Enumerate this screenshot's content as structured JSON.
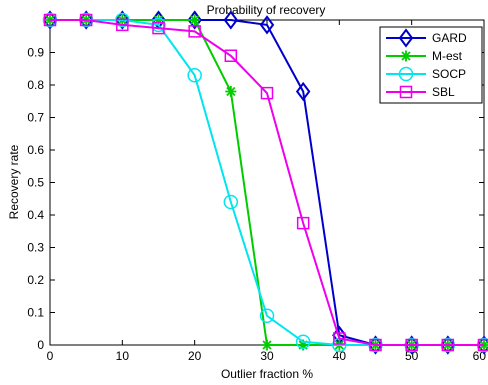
{
  "chart_data": {
    "type": "line",
    "title": "Probability of recovery",
    "xlabel": "Outlier fraction %",
    "ylabel": "Recovery rate",
    "xlim": [
      0,
      60
    ],
    "ylim": [
      0,
      1
    ],
    "x_ticks": [
      0,
      10,
      20,
      30,
      40,
      50,
      60
    ],
    "y_ticks": [
      0,
      0.1,
      0.2,
      0.3,
      0.4,
      0.5,
      0.6,
      0.7,
      0.8,
      0.9
    ],
    "grid": false,
    "legend_position": "top-right",
    "x": [
      0,
      5,
      10,
      15,
      20,
      25,
      30,
      35,
      40,
      45,
      50,
      55,
      60
    ],
    "series": [
      {
        "name": "GARD",
        "color": "#0000cc",
        "marker": "diamond",
        "values": [
          1.0,
          1.0,
          1.0,
          1.0,
          1.0,
          1.0,
          0.985,
          0.78,
          0.03,
          0.0,
          0.0,
          0.0,
          0.0
        ]
      },
      {
        "name": "M-est",
        "color": "#00cc00",
        "marker": "star",
        "values": [
          1.0,
          1.0,
          1.0,
          1.0,
          1.0,
          0.78,
          0.0,
          0.0,
          0.0,
          0.0,
          0.0,
          0.0,
          0.0
        ]
      },
      {
        "name": "SOCP",
        "color": "#00e5ee",
        "marker": "circle",
        "values": [
          1.0,
          1.0,
          1.0,
          0.985,
          0.83,
          0.44,
          0.09,
          0.01,
          0.0,
          0.0,
          0.0,
          0.0,
          0.0
        ]
      },
      {
        "name": "SBL",
        "color": "#ee00ee",
        "marker": "square",
        "values": [
          1.0,
          1.0,
          0.985,
          0.975,
          0.965,
          0.89,
          0.775,
          0.375,
          0.02,
          0.0,
          0.0,
          0.0,
          0.0
        ]
      }
    ]
  }
}
